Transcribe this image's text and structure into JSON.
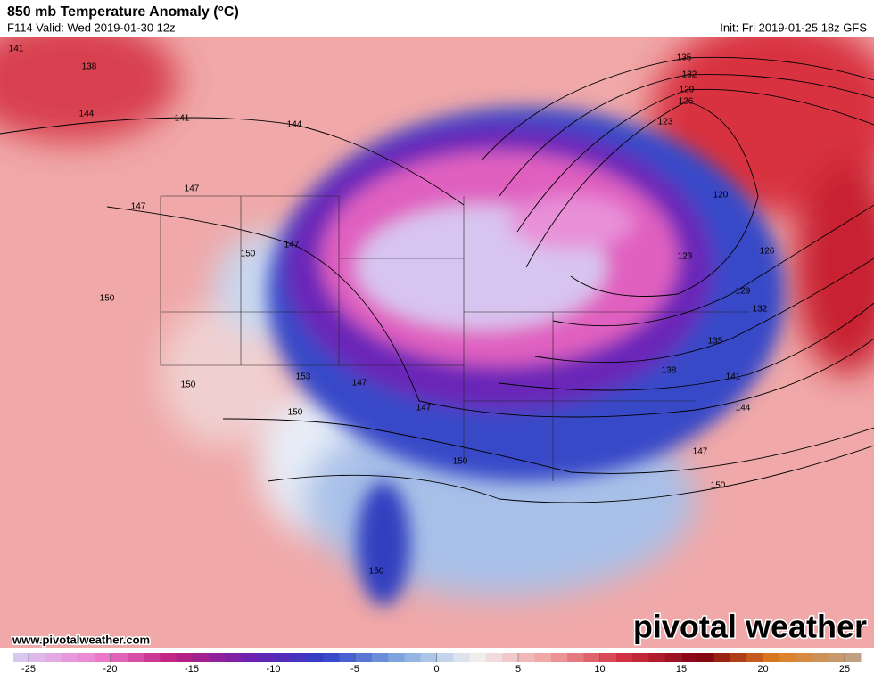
{
  "header": {
    "title": "850 mb Temperature Anomaly (°C)",
    "subtitle": "F114 Valid: Wed 2019-01-30 12z",
    "init": "Init: Fri 2019-01-25 18z GFS"
  },
  "map": {
    "contour_labels": [
      "141",
      "138",
      "144",
      "141",
      "147",
      "147",
      "150",
      "147",
      "150",
      "144",
      "153",
      "147",
      "150",
      "150",
      "147",
      "150",
      "150",
      "135",
      "132",
      "129",
      "126",
      "123",
      "120",
      "123",
      "126",
      "129",
      "132",
      "135",
      "138",
      "141",
      "144",
      "147",
      "150"
    ]
  },
  "footer": {
    "url": "www.pivotalweather.com",
    "brand": "pivotal weather"
  },
  "colorbar": {
    "ticks": [
      -25,
      -20,
      -15,
      -10,
      -5,
      0,
      5,
      10,
      15,
      20,
      25
    ],
    "colors": [
      "#d8c8f0",
      "#f080d0",
      "#c02080",
      "#7020b0",
      "#3040c8",
      "#80a8e0",
      "#f0f0f0",
      "#f0a0a0",
      "#d03040",
      "#800010",
      "#e08020",
      "#c0a080"
    ]
  }
}
